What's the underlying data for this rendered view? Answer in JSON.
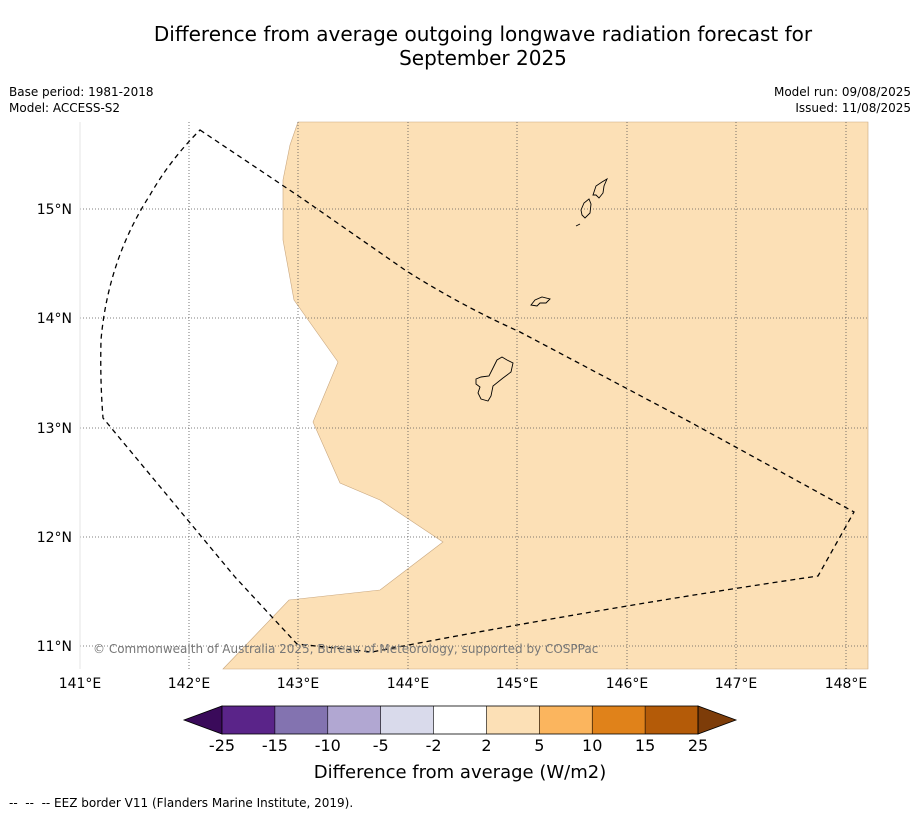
{
  "title_line1": "Difference from average outgoing longwave radiation forecast for",
  "title_line2": "September 2025",
  "meta_left": {
    "base_period": "Base period: 1981-2018",
    "model": "Model: ACCESS-S2"
  },
  "meta_right": {
    "model_run": "Model run: 09/08/2025",
    "issued": "Issued: 11/08/2025"
  },
  "map": {
    "lon_range": [
      141,
      148.2
    ],
    "lat_range": [
      10.8,
      15.8
    ],
    "lon_ticks": [
      "141°E",
      "142°E",
      "143°E",
      "144°E",
      "145°E",
      "146°E",
      "147°E",
      "148°E"
    ],
    "lat_ticks": [
      "15°N",
      "14°N",
      "13°N",
      "12°N",
      "11°N"
    ],
    "anomaly_fill_color": "#fce0b6",
    "anomaly_category": "2 to 5",
    "credit": "© Commonwealth of Australia 2025, Bureau of Meteorology, supported by COSPPac"
  },
  "colorbar": {
    "ticks": [
      "-25",
      "-15",
      "-10",
      "-5",
      "-2",
      "2",
      "5",
      "10",
      "15",
      "25"
    ],
    "colors": [
      "#5a2489",
      "#8373b0",
      "#b1a7d2",
      "#d9daeb",
      "#ffffff",
      "#fce0b6",
      "#fbb55e",
      "#e0821a",
      "#b45b08"
    ],
    "extend_low_color": "#3a0a5a",
    "extend_high_color": "#7d3c09",
    "label": "Difference from average (W/m2)"
  },
  "footer": "--  --  -- EEZ border V11 (Flanders Marine Institute, 2019)."
}
